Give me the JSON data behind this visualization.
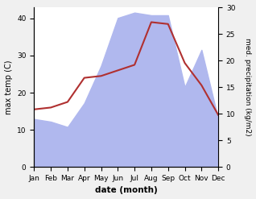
{
  "months": [
    "Jan",
    "Feb",
    "Mar",
    "Apr",
    "May",
    "Jun",
    "Jul",
    "Aug",
    "Sep",
    "Oct",
    "Nov",
    "Dec"
  ],
  "temp": [
    15.5,
    16.0,
    17.5,
    24.0,
    24.5,
    26.0,
    27.5,
    39.0,
    38.5,
    28.0,
    22.0,
    14.0
  ],
  "precip": [
    9.0,
    8.5,
    7.5,
    12.0,
    19.0,
    28.0,
    29.0,
    28.5,
    28.5,
    15.0,
    22.0,
    9.0
  ],
  "temp_color": "#b03030",
  "precip_fill_color": "#b0b8ee",
  "ylabel_left": "max temp (C)",
  "ylabel_right": "med. precipitation (kg/m2)",
  "xlabel": "date (month)",
  "ylim_left": [
    0,
    43
  ],
  "ylim_right": [
    0,
    30
  ],
  "yticks_left": [
    0,
    10,
    20,
    30,
    40
  ],
  "yticks_right": [
    0,
    5,
    10,
    15,
    20,
    25,
    30
  ],
  "bg_color": "#f0f0f0",
  "plot_bg": "#ffffff"
}
